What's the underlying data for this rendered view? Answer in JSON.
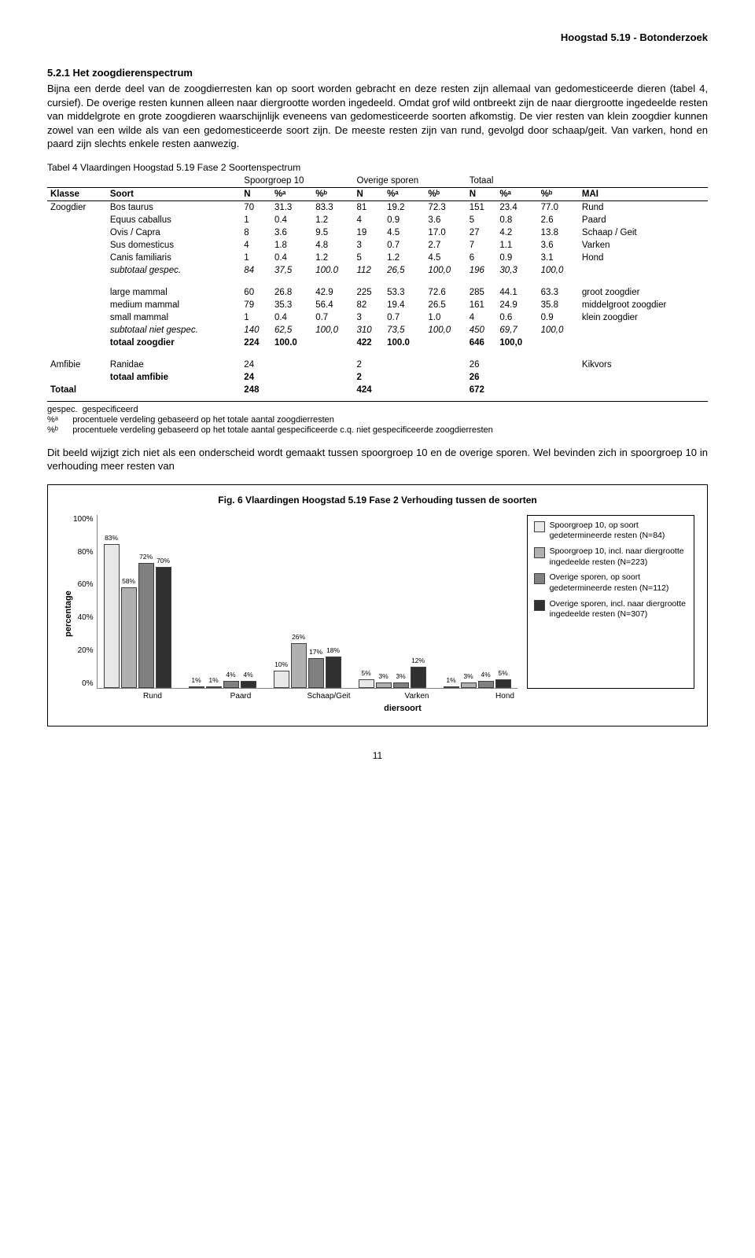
{
  "header": "Hoogstad 5.19 - Botonderzoek",
  "section": {
    "number": "5.2.1 Het zoogdierenspectrum",
    "p1": "Bijna een derde deel van de zoogdierresten kan op soort worden gebracht en deze resten zijn allemaal van gedomesticeerde dieren (tabel 4, cursief). De overige resten kunnen alleen naar diergrootte worden ingedeeld. Omdat grof wild ontbreekt zijn de naar diergrootte ingedeelde resten van middelgrote en grote zoogdieren waarschijnlijk eveneens van gedomesticeerde soorten afkomstig. De vier resten van klein zoogdier kunnen zowel van een wilde als van een gedomesticeerde soort zijn. De meeste resten zijn van rund, gevolgd door schaap/geit. Van varken, hond en paard zijn slechts enkele resten aanwezig."
  },
  "table": {
    "caption": "Tabel 4 Vlaardingen Hoogstad 5.19 Fase 2 Soortenspectrum",
    "group_headers": [
      "Spoorgroep 10",
      "Overige sporen",
      "Totaal"
    ],
    "col_headers": [
      "Klasse",
      "Soort",
      "N",
      "%ᵃ",
      "%ᵇ",
      "N",
      "%ᵃ",
      "%ᵇ",
      "N",
      "%ᵃ",
      "%ᵇ",
      "MAI"
    ],
    "rows": [
      {
        "klasse": "Zoogdier",
        "soort": "Bos taurus",
        "c": [
          "70",
          "31.3",
          "83.3",
          "81",
          "19.2",
          "72.3",
          "151",
          "23.4",
          "77.0"
        ],
        "mai": "Rund"
      },
      {
        "klasse": "",
        "soort": "Equus caballus",
        "c": [
          "1",
          "0.4",
          "1.2",
          "4",
          "0.9",
          "3.6",
          "5",
          "0.8",
          "2.6"
        ],
        "mai": "Paard"
      },
      {
        "klasse": "",
        "soort": "Ovis / Capra",
        "c": [
          "8",
          "3.6",
          "9.5",
          "19",
          "4.5",
          "17.0",
          "27",
          "4.2",
          "13.8"
        ],
        "mai": "Schaap / Geit"
      },
      {
        "klasse": "",
        "soort": "Sus domesticus",
        "c": [
          "4",
          "1.8",
          "4.8",
          "3",
          "0.7",
          "2.7",
          "7",
          "1.1",
          "3.6"
        ],
        "mai": "Varken"
      },
      {
        "klasse": "",
        "soort": "Canis familiaris",
        "c": [
          "1",
          "0.4",
          "1.2",
          "5",
          "1.2",
          "4.5",
          "6",
          "0.9",
          "3.1"
        ],
        "mai": "Hond"
      }
    ],
    "subtotal_spec": {
      "label": "subtotaal gespec.",
      "c": [
        "84",
        "37,5",
        "100.0",
        "112",
        "26,5",
        "100,0",
        "196",
        "30,3",
        "100,0"
      ],
      "mai": ""
    },
    "rows2": [
      {
        "soort": "large mammal",
        "c": [
          "60",
          "26.8",
          "42.9",
          "225",
          "53.3",
          "72.6",
          "285",
          "44.1",
          "63.3"
        ],
        "mai": "groot zoogdier"
      },
      {
        "soort": "medium mammal",
        "c": [
          "79",
          "35.3",
          "56.4",
          "82",
          "19.4",
          "26.5",
          "161",
          "24.9",
          "35.8"
        ],
        "mai": "middelgroot zoogdier"
      },
      {
        "soort": "small mammal",
        "c": [
          "1",
          "0.4",
          "0.7",
          "3",
          "0.7",
          "1.0",
          "4",
          "0.6",
          "0.9"
        ],
        "mai": "klein zoogdier"
      }
    ],
    "subtotal_niet": {
      "label": "subtotaal niet gespec.",
      "c": [
        "140",
        "62,5",
        "100,0",
        "310",
        "73,5",
        "100,0",
        "450",
        "69,7",
        "100,0"
      ],
      "mai": ""
    },
    "totaal_zoogdier": {
      "label": "totaal zoogdier",
      "c": [
        "224",
        "100.0",
        "",
        "422",
        "100.0",
        "",
        "646",
        "100,0",
        ""
      ],
      "mai": ""
    },
    "amfibie": {
      "klasse": "Amfibie",
      "soort": "Ranidae",
      "c": [
        "24",
        "",
        "",
        "2",
        "",
        "",
        "26",
        "",
        ""
      ],
      "mai": "Kikvors"
    },
    "totaal_amfibie": {
      "label": "totaal amfibie",
      "c": [
        "24",
        "",
        "",
        "2",
        "",
        "",
        "26",
        "",
        ""
      ],
      "mai": ""
    },
    "totaal": {
      "label": "Totaal",
      "c": [
        "248",
        "",
        "",
        "424",
        "",
        "",
        "672",
        "",
        ""
      ],
      "mai": ""
    }
  },
  "footnotes": {
    "f1": {
      "key": "gespec.",
      "text": "gespecificeerd"
    },
    "f2": {
      "key": "%ᵃ",
      "text": "procentuele verdeling gebaseerd op het totale aantal zoogdierresten"
    },
    "f3": {
      "key": "%ᵇ",
      "text": "procentuele verdeling gebaseerd op het totale aantal gespecificeerde c.q. niet gespecificeerde zoogdierresten"
    }
  },
  "p2": "Dit beeld wijzigt zich niet als een onderscheid wordt gemaakt tussen spoorgroep 10 en de overige sporen. Wel bevinden zich in spoorgroep 10 in verhouding meer resten van",
  "chart": {
    "title": "Fig. 6 Vlaardingen Hoogstad 5.19 Fase 2 Verhouding tussen de soorten",
    "ylabel": "percentage",
    "xlabel": "diersoort",
    "yticks": [
      "100%",
      "80%",
      "60%",
      "40%",
      "20%",
      "0%"
    ],
    "ymax": 100,
    "categories": [
      "Rund",
      "Paard",
      "Schaap/Geit",
      "Varken",
      "Hond"
    ],
    "series": [
      {
        "name": "Spoorgroep 10, op soort gedetermineerde resten (N=84)",
        "color": "#e8e8e8",
        "values": [
          83,
          1,
          10,
          5,
          1
        ]
      },
      {
        "name": "Spoorgroep 10, incl. naar diergrootte ingedeelde resten (N=223)",
        "color": "#b0b0b0",
        "values": [
          58,
          1,
          26,
          3,
          3
        ]
      },
      {
        "name": "Overige sporen, op soort gedetermineerde resten (N=112)",
        "color": "#808080",
        "values": [
          72,
          4,
          17,
          3,
          4
        ]
      },
      {
        "name": "Overige sporen, incl. naar diergrootte ingedeelde resten (N=307)",
        "color": "#303030",
        "values": [
          70,
          4,
          18,
          12,
          5
        ]
      }
    ],
    "bar_labels": [
      [
        "83%",
        "58%",
        "72%",
        "70%"
      ],
      [
        "1%",
        "1%",
        "4%",
        "4%"
      ],
      [
        "10%",
        "26%",
        "17%",
        "18%"
      ],
      [
        "5%",
        "3%",
        "3%",
        "12%"
      ],
      [
        "1%",
        "3%",
        "4%",
        "5%"
      ]
    ]
  },
  "page_num": "11"
}
